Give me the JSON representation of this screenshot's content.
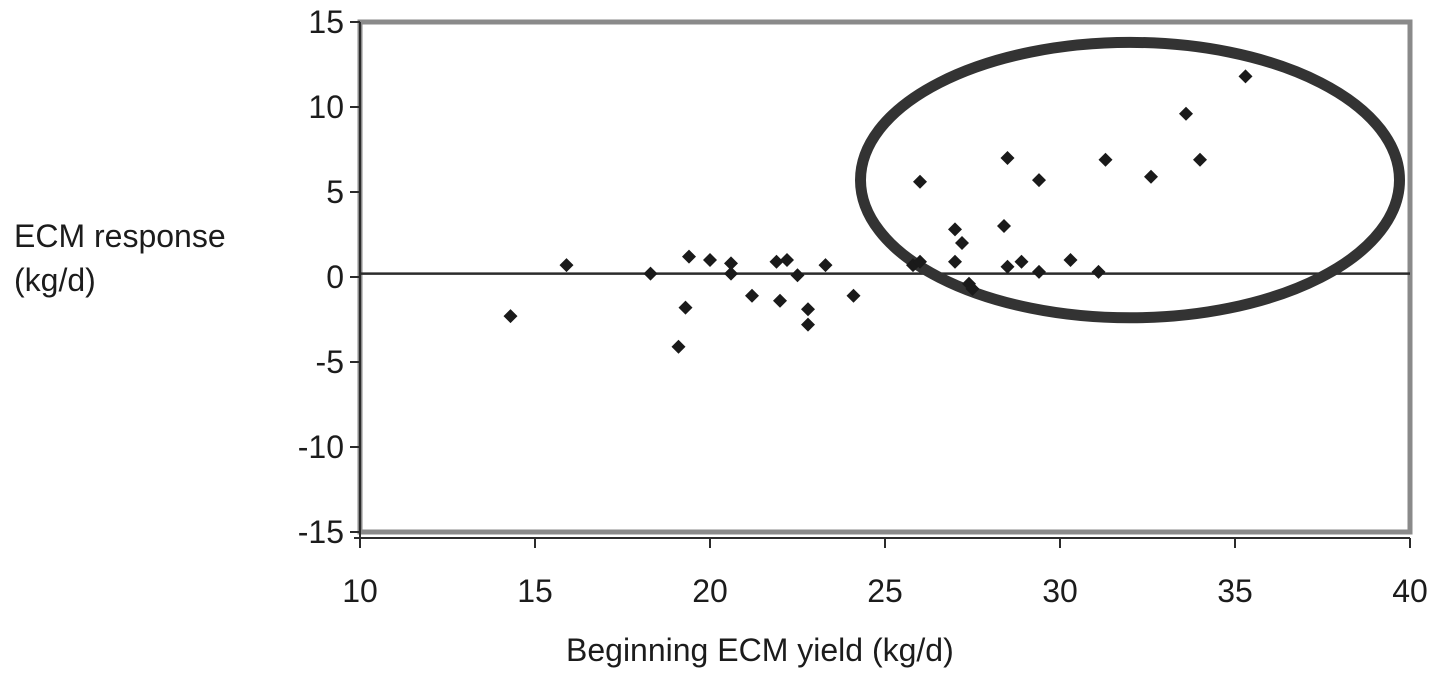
{
  "chart_data": {
    "type": "scatter",
    "title": "",
    "xlabel": "Beginning ECM yield (kg/d)",
    "ylabel_lines": [
      "ECM response",
      "(kg/d)"
    ],
    "xlim": [
      10,
      40
    ],
    "ylim": [
      -15,
      15
    ],
    "xticks": [
      "10",
      "15",
      "20",
      "25",
      "30",
      "35",
      "40"
    ],
    "yticks": [
      "15",
      "10",
      "5",
      "0",
      "-5",
      "-10",
      "-15"
    ],
    "grid": false,
    "legend": "none",
    "reference_line": {
      "y": 0.2
    },
    "highlight_ellipse": {
      "center_x": 32,
      "center_y": 5.7,
      "half_width_x": 7.7,
      "half_height_y": 8.1
    },
    "marker": "diamond",
    "colors": {
      "points": "#1a1a1a",
      "frame": "#8a8a8a",
      "axis": "#2b2b2b",
      "ellipse": "#333333"
    },
    "series": [
      {
        "x": [
          14.3,
          15.9,
          18.3,
          19.1,
          19.3,
          19.4,
          20.0,
          20.6,
          20.6,
          21.2,
          21.9,
          22.0,
          22.2,
          22.5,
          22.8,
          22.8,
          23.3,
          24.1,
          25.8,
          26.0,
          26.0,
          27.0,
          27.0,
          27.2,
          27.4,
          27.5,
          28.4,
          28.5,
          28.5,
          28.9,
          29.4,
          29.4,
          30.3,
          31.1,
          31.3,
          32.6,
          33.6,
          34.0,
          35.3
        ],
        "y": [
          -2.3,
          0.7,
          0.2,
          -4.1,
          -1.8,
          1.2,
          1.0,
          0.2,
          0.8,
          -1.1,
          0.9,
          -1.4,
          1.0,
          0.1,
          -1.9,
          -2.8,
          0.7,
          -1.1,
          0.7,
          0.9,
          5.6,
          0.9,
          2.8,
          2.0,
          -0.4,
          -0.7,
          3.0,
          0.6,
          7.0,
          0.9,
          5.7,
          0.3,
          1.0,
          0.3,
          6.9,
          5.9,
          9.6,
          6.9,
          11.8
        ]
      }
    ]
  }
}
